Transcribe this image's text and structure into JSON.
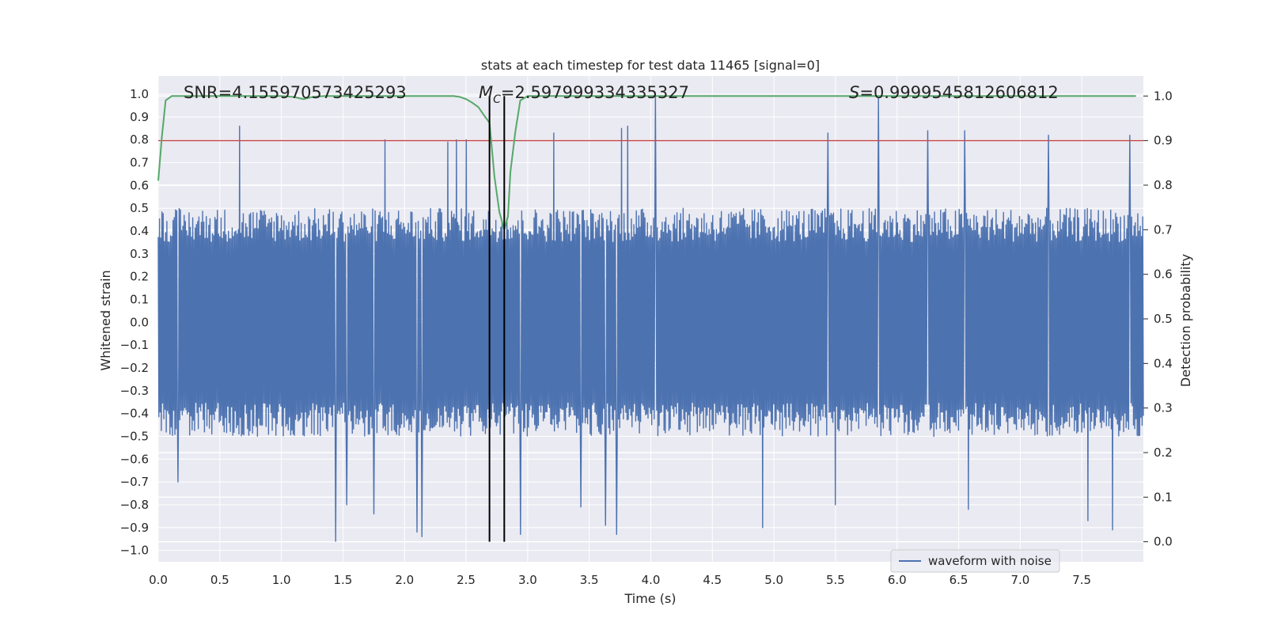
{
  "chart_data": {
    "type": "line",
    "title": "stats at each timestep for test data 11465 [signal=0]",
    "xlabel": "Time (s)",
    "ylabel": "Whitened strain",
    "y2label": "Detection probability",
    "xlim": [
      0.0,
      8.0
    ],
    "ylim": [
      -1.05,
      1.08
    ],
    "y2lim": [
      -0.045,
      1.045
    ],
    "xticks": [
      0.0,
      0.5,
      1.0,
      1.5,
      2.0,
      2.5,
      3.0,
      3.5,
      4.0,
      4.5,
      5.0,
      5.5,
      6.0,
      6.5,
      7.0,
      7.5
    ],
    "yticks": [
      -1.0,
      -0.9,
      -0.8,
      -0.7,
      -0.6,
      -0.5,
      -0.4,
      -0.3,
      -0.2,
      -0.1,
      0.0,
      0.1,
      0.2,
      0.3,
      0.4,
      0.5,
      0.6,
      0.7,
      0.8,
      0.9,
      1.0
    ],
    "y2ticks": [
      0.0,
      0.1,
      0.2,
      0.3,
      0.4,
      0.5,
      0.6,
      0.7,
      0.8,
      0.9,
      1.0
    ],
    "annotations": {
      "snr": "SNR=4.155970573425293",
      "mc_symbol": "M",
      "mc_sub": "C",
      "mc_value": "=2.597999334335327",
      "s_symbol": "S",
      "s_value": "=0.9999545812606812"
    },
    "threshold": {
      "axis": "right",
      "value": 0.9,
      "color": "#c44e52"
    },
    "vertical_lines": [
      2.69,
      2.81
    ],
    "legend": {
      "entries": [
        "waveform with noise"
      ],
      "placement": "lower-right"
    },
    "series": [
      {
        "name": "waveform with noise",
        "axis": "left",
        "color": "#4c72b0",
        "kind": "noise",
        "sample_rate": 4096,
        "duration": 8.0,
        "envelope_pos": 0.5,
        "envelope_neg": -0.5,
        "peaks": [
          [
            0.66,
            0.86
          ],
          [
            1.84,
            0.8
          ],
          [
            2.35,
            0.79
          ],
          [
            2.42,
            0.8
          ],
          [
            2.5,
            0.8
          ],
          [
            3.21,
            0.83
          ],
          [
            3.76,
            0.85
          ],
          [
            3.81,
            0.86
          ],
          [
            4.04,
            1.0
          ],
          [
            5.44,
            0.83
          ],
          [
            5.85,
            0.98
          ],
          [
            6.25,
            0.84
          ],
          [
            6.55,
            0.84
          ],
          [
            7.23,
            0.82
          ],
          [
            7.89,
            0.82
          ]
        ],
        "troughs": [
          [
            0.16,
            -0.7
          ],
          [
            1.44,
            -0.96
          ],
          [
            1.53,
            -0.8
          ],
          [
            1.75,
            -0.84
          ],
          [
            2.1,
            -0.92
          ],
          [
            2.14,
            -0.94
          ],
          [
            2.94,
            -0.93
          ],
          [
            3.43,
            -0.81
          ],
          [
            3.63,
            -0.89
          ],
          [
            3.72,
            -0.93
          ],
          [
            4.91,
            -0.9
          ],
          [
            5.5,
            -0.8
          ],
          [
            6.58,
            -0.82
          ],
          [
            7.55,
            -0.87
          ],
          [
            7.75,
            -0.91
          ]
        ]
      },
      {
        "name": "detection probability",
        "axis": "right",
        "color": "#55a868",
        "x": [
          0.0,
          0.03,
          0.06,
          0.11,
          0.2,
          0.4,
          0.6,
          0.8,
          1.0,
          1.1,
          1.18,
          1.25,
          1.35,
          1.6,
          2.0,
          2.3,
          2.4,
          2.45,
          2.5,
          2.55,
          2.6,
          2.65,
          2.69,
          2.73,
          2.77,
          2.81,
          2.84,
          2.86,
          2.9,
          2.94,
          3.0,
          3.2,
          4.0,
          5.0,
          6.0,
          7.0,
          7.94
        ],
        "values": [
          0.81,
          0.91,
          0.99,
          1.0,
          1.0,
          1.0,
          1.0,
          1.0,
          1.0,
          0.998,
          0.993,
          0.998,
          1.0,
          1.0,
          1.0,
          1.0,
          1.0,
          0.998,
          0.993,
          0.985,
          0.975,
          0.955,
          0.94,
          0.82,
          0.74,
          0.7,
          0.73,
          0.83,
          0.92,
          0.99,
          1.0,
          1.0,
          1.0,
          1.0,
          1.0,
          1.0,
          1.0
        ]
      }
    ]
  }
}
